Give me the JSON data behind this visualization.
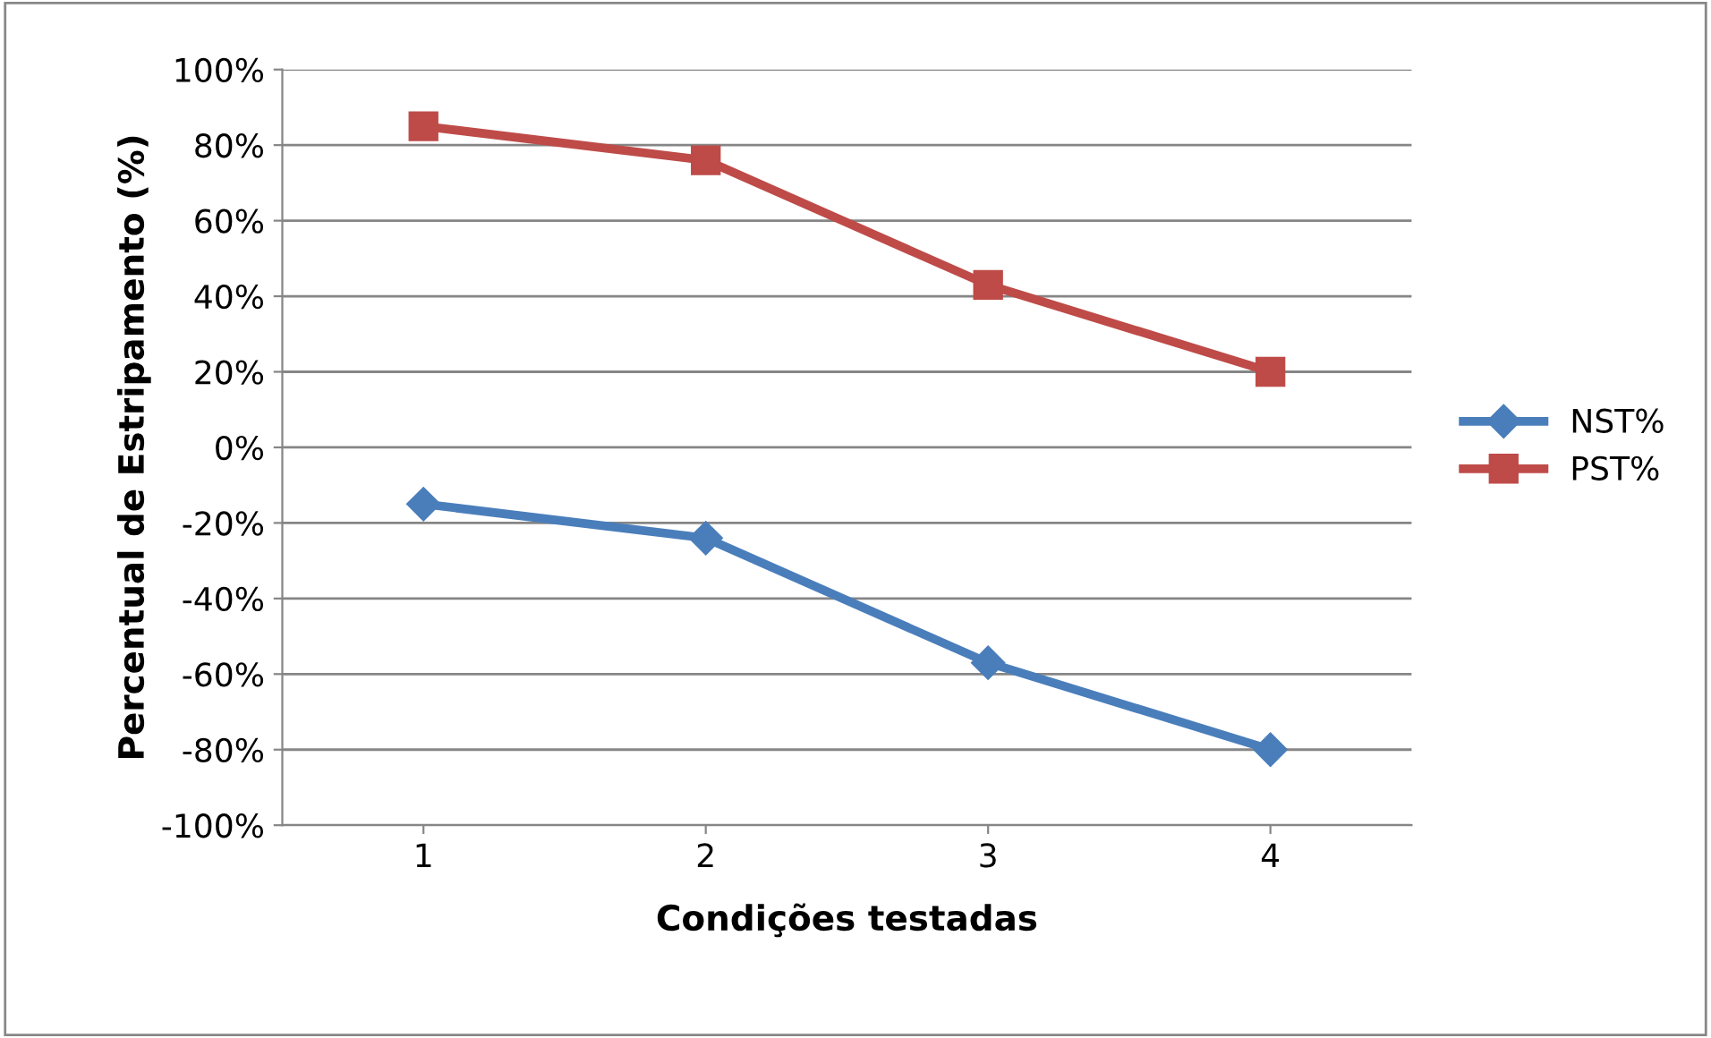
{
  "chart_data": {
    "type": "line",
    "xlabel": "Condições testadas",
    "ylabel": "Percentual de Estripamento (%)",
    "categories": [
      "1",
      "2",
      "3",
      "4"
    ],
    "series": [
      {
        "name": "NST%",
        "color": "#4a7ebb",
        "marker": "diamond",
        "values": [
          -15,
          -24,
          -57,
          -80
        ]
      },
      {
        "name": "PST%",
        "color": "#be4b48",
        "marker": "square",
        "values": [
          85,
          76,
          43,
          20
        ]
      }
    ],
    "ylim": [
      -100,
      100
    ],
    "yticks": [
      {
        "value": -100,
        "label": "-100%"
      },
      {
        "value": -80,
        "label": "-80%"
      },
      {
        "value": -60,
        "label": "-60%"
      },
      {
        "value": -40,
        "label": "-40%"
      },
      {
        "value": -20,
        "label": "-20%"
      },
      {
        "value": 0,
        "label": "0%"
      },
      {
        "value": 20,
        "label": "20%"
      },
      {
        "value": 40,
        "label": "40%"
      },
      {
        "value": 60,
        "label": "60%"
      },
      {
        "value": 80,
        "label": "80%"
      },
      {
        "value": 100,
        "label": "100%"
      }
    ],
    "grid": "y",
    "legend": "right",
    "line_style": "solid"
  }
}
